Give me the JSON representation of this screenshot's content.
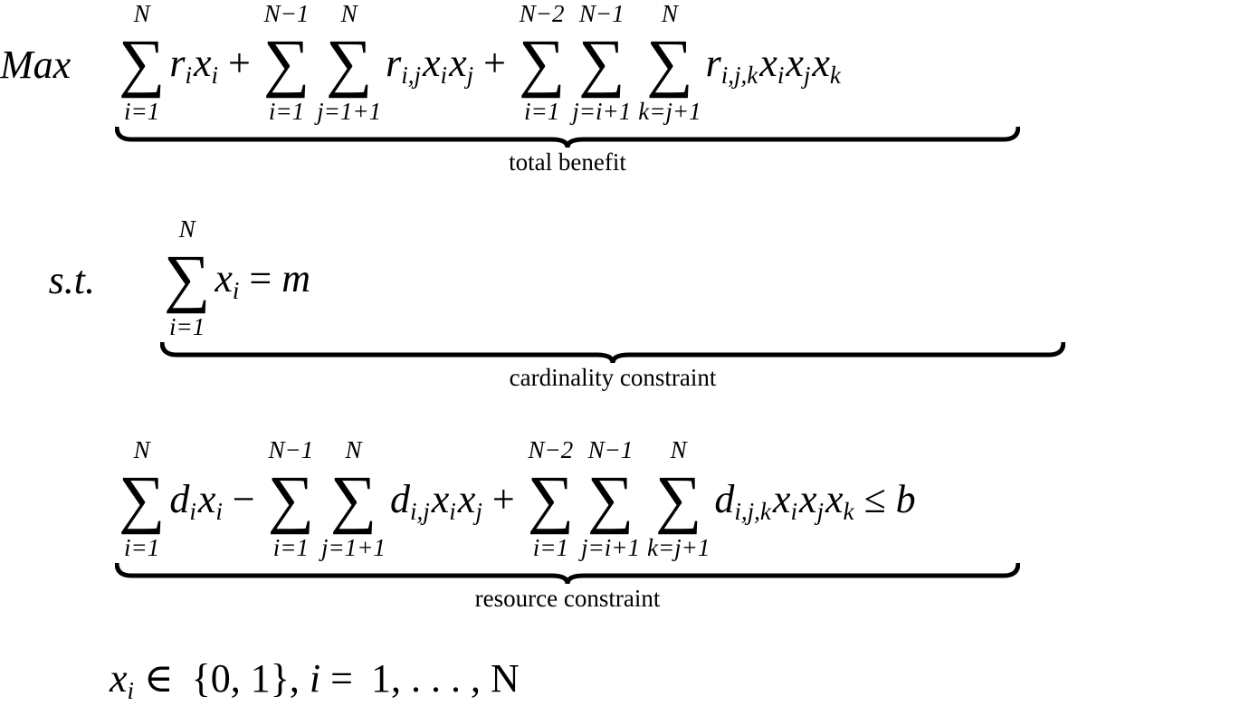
{
  "lines": [
    {
      "label": "Max",
      "brace_label": "total benefit",
      "items": [
        {
          "symbol": "∑",
          "upper": "N",
          "lower": "i=1"
        },
        {
          "text": "r",
          "sub": "i"
        },
        {
          "text": "x",
          "sub": "i"
        },
        {
          "op": "+"
        },
        {
          "symbol": "∑",
          "upper": "N−1",
          "lower": "i=1"
        },
        {
          "symbol": "∑",
          "upper": "N",
          "lower": "j=1+1"
        },
        {
          "text": "r",
          "sub": "i,j"
        },
        {
          "text": "x",
          "sub": "i"
        },
        {
          "text": "x",
          "sub": "j"
        },
        {
          "op": "+"
        },
        {
          "symbol": "∑",
          "upper": "N−2",
          "lower": "i=1"
        },
        {
          "symbol": "∑",
          "upper": "N−1",
          "lower": "j=i+1"
        },
        {
          "symbol": "∑",
          "upper": "N",
          "lower": "k=j+1"
        },
        {
          "text": "r",
          "sub": "i,j,k"
        },
        {
          "text": "x",
          "sub": "i"
        },
        {
          "text": "x",
          "sub": "j"
        },
        {
          "text": "x",
          "sub": "k"
        }
      ]
    },
    {
      "label": "s.t.",
      "brace_label": "cardinality constraint",
      "items": [
        {
          "symbol": "∑",
          "upper": "N",
          "lower": "i=1"
        },
        {
          "text": "x",
          "sub": "i"
        },
        {
          "op": "="
        },
        {
          "text": "m"
        }
      ]
    },
    {
      "brace_label": "resource constraint",
      "items": [
        {
          "symbol": "∑",
          "upper": "N",
          "lower": "i=1"
        },
        {
          "text": "d",
          "sub": "i"
        },
        {
          "text": "x",
          "sub": "i"
        },
        {
          "op": "−"
        },
        {
          "symbol": "∑",
          "upper": "N−1",
          "lower": "i=1"
        },
        {
          "symbol": "∑",
          "upper": "N",
          "lower": "j=1+1"
        },
        {
          "text": "d",
          "sub": "i,j"
        },
        {
          "text": "x",
          "sub": "i"
        },
        {
          "text": "x",
          "sub": "j"
        },
        {
          "op": "+"
        },
        {
          "symbol": "∑",
          "upper": "N−2",
          "lower": "i=1"
        },
        {
          "symbol": "∑",
          "upper": "N−1",
          "lower": "j=i+1"
        },
        {
          "symbol": "∑",
          "upper": "N",
          "lower": "k=j+1"
        },
        {
          "text": "d",
          "sub": "i,j,k"
        },
        {
          "text": "x",
          "sub": "i"
        },
        {
          "text": "x",
          "sub": "j"
        },
        {
          "text": "x",
          "sub": "k"
        },
        {
          "op": "≤"
        },
        {
          "text": "b"
        }
      ]
    },
    {
      "items": [
        {
          "text": "x",
          "sub": "i"
        },
        {
          "op": "∈"
        },
        {
          "op": "{0, 1},"
        },
        {
          "text": "i"
        },
        {
          "op": "="
        },
        {
          "op": "1, . . . , N"
        }
      ]
    }
  ]
}
